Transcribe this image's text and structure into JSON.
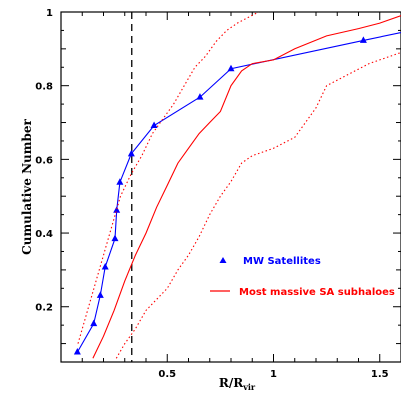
{
  "chart_data": {
    "type": "line",
    "xlabel": "R/R",
    "xlabel_subscript": "vir",
    "ylabel": "Cumulative Number",
    "xlim": [
      0,
      1.6
    ],
    "ylim": [
      0.05,
      1.0
    ],
    "x_ticks": [
      0.5,
      1,
      1.5
    ],
    "x_tick_labels": [
      "0.5",
      "1",
      "1.5"
    ],
    "y_ticks": [
      0.2,
      0.4,
      0.6,
      0.8,
      1
    ],
    "y_tick_labels": [
      "0.2",
      "0.4",
      "0.6",
      "0.8",
      "1"
    ],
    "vertical_line_x": 0.333,
    "series": [
      {
        "name": "MW Satellites",
        "color": "#0000ff",
        "marker": "triangle",
        "x": [
          0.077,
          0.154,
          0.185,
          0.208,
          0.254,
          0.262,
          0.277,
          0.331,
          0.438,
          0.654,
          0.8,
          1.423,
          1.6
        ],
        "y": [
          0.077,
          0.154,
          0.231,
          0.308,
          0.385,
          0.462,
          0.538,
          0.615,
          0.692,
          0.769,
          0.846,
          0.923,
          0.944
        ],
        "markers_x": [
          0.077,
          0.154,
          0.185,
          0.208,
          0.254,
          0.262,
          0.277,
          0.331,
          0.438,
          0.654,
          0.8,
          1.423
        ],
        "markers_y": [
          0.077,
          0.154,
          0.231,
          0.308,
          0.385,
          0.462,
          0.538,
          0.615,
          0.692,
          0.769,
          0.846,
          0.923
        ]
      },
      {
        "name": "Most massive SA subhaloes",
        "color": "#ff0000",
        "style": "solid",
        "x": [
          0.15,
          0.2,
          0.25,
          0.3,
          0.35,
          0.4,
          0.45,
          0.5,
          0.55,
          0.6,
          0.65,
          0.7,
          0.75,
          0.8,
          0.85,
          0.9,
          1.0,
          1.1,
          1.25,
          1.4,
          1.5,
          1.6
        ],
        "y": [
          0.06,
          0.12,
          0.19,
          0.27,
          0.34,
          0.4,
          0.47,
          0.53,
          0.59,
          0.63,
          0.67,
          0.7,
          0.73,
          0.8,
          0.84,
          0.86,
          0.87,
          0.9,
          0.935,
          0.955,
          0.97,
          0.99
        ]
      },
      {
        "style": "dotted",
        "color": "#ff0000",
        "x": [
          0.08,
          0.12,
          0.16,
          0.2,
          0.24,
          0.28,
          0.33,
          0.38,
          0.43,
          0.48,
          0.53,
          0.58,
          0.63,
          0.68,
          0.73,
          0.78,
          0.83,
          0.88,
          0.93
        ],
        "y": [
          0.1,
          0.18,
          0.26,
          0.34,
          0.42,
          0.5,
          0.56,
          0.61,
          0.67,
          0.71,
          0.75,
          0.8,
          0.85,
          0.88,
          0.92,
          0.95,
          0.97,
          0.985,
          1.0
        ]
      },
      {
        "style": "dotted",
        "color": "#ff0000",
        "x": [
          0.26,
          0.3,
          0.35,
          0.4,
          0.45,
          0.5,
          0.55,
          0.6,
          0.65,
          0.7,
          0.75,
          0.8,
          0.85,
          0.9,
          1.0,
          1.1,
          1.2,
          1.25,
          1.35,
          1.45,
          1.55,
          1.6
        ],
        "y": [
          0.06,
          0.1,
          0.14,
          0.19,
          0.22,
          0.25,
          0.3,
          0.34,
          0.39,
          0.45,
          0.5,
          0.54,
          0.59,
          0.61,
          0.63,
          0.66,
          0.74,
          0.8,
          0.83,
          0.86,
          0.88,
          0.89
        ]
      }
    ],
    "legend": [
      {
        "label": "MW Satellites",
        "color": "#0000ff",
        "symbol": "triangle"
      },
      {
        "label": "Most massive SA subhaloes",
        "color": "#ff0000",
        "symbol": "line"
      }
    ]
  }
}
